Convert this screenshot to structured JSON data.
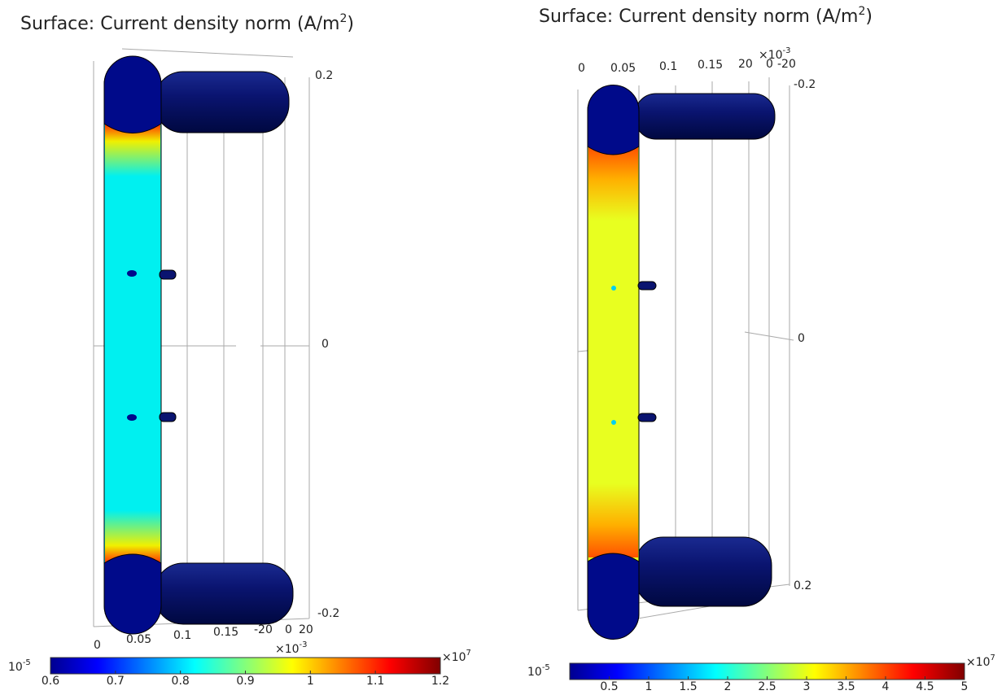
{
  "panels": [
    {
      "title": {
        "main": "Surface: Current density norm (A/m",
        "sup": "2",
        "end": ")"
      },
      "axis_labels": [
        "0.2",
        "0",
        "-0.2",
        "0",
        "0.05",
        "0.1",
        "0.15",
        "-20",
        "0",
        "20"
      ],
      "axis_exponent": {
        "base": "×10",
        "exp": "-3"
      },
      "colorbar": {
        "min_label": {
          "base": "10",
          "exp": "-5"
        },
        "range": [
          0.6,
          1.2
        ],
        "ticks": [
          0.6,
          0.7,
          0.8,
          0.9,
          1,
          1.1,
          1.2
        ],
        "exponent": {
          "base": "×10",
          "exp": "7"
        }
      }
    },
    {
      "title": {
        "main": "Surface: Current density norm (A/m",
        "sup": "2",
        "end": ")"
      },
      "axis_labels": [
        "0",
        "0.05",
        "0.1",
        "0.15",
        "20",
        "0",
        "-20",
        "-0.2",
        "0",
        "0.2"
      ],
      "axis_exponent": {
        "base": "×10",
        "exp": "-3"
      },
      "colorbar": {
        "min_label": {
          "base": "10",
          "exp": "-5"
        },
        "range": [
          0,
          5
        ],
        "ticks": [
          0.5,
          1,
          1.5,
          2,
          2.5,
          3,
          3.5,
          4,
          4.5,
          5
        ],
        "exponent": {
          "base": "×10",
          "exp": "7"
        }
      }
    }
  ]
}
